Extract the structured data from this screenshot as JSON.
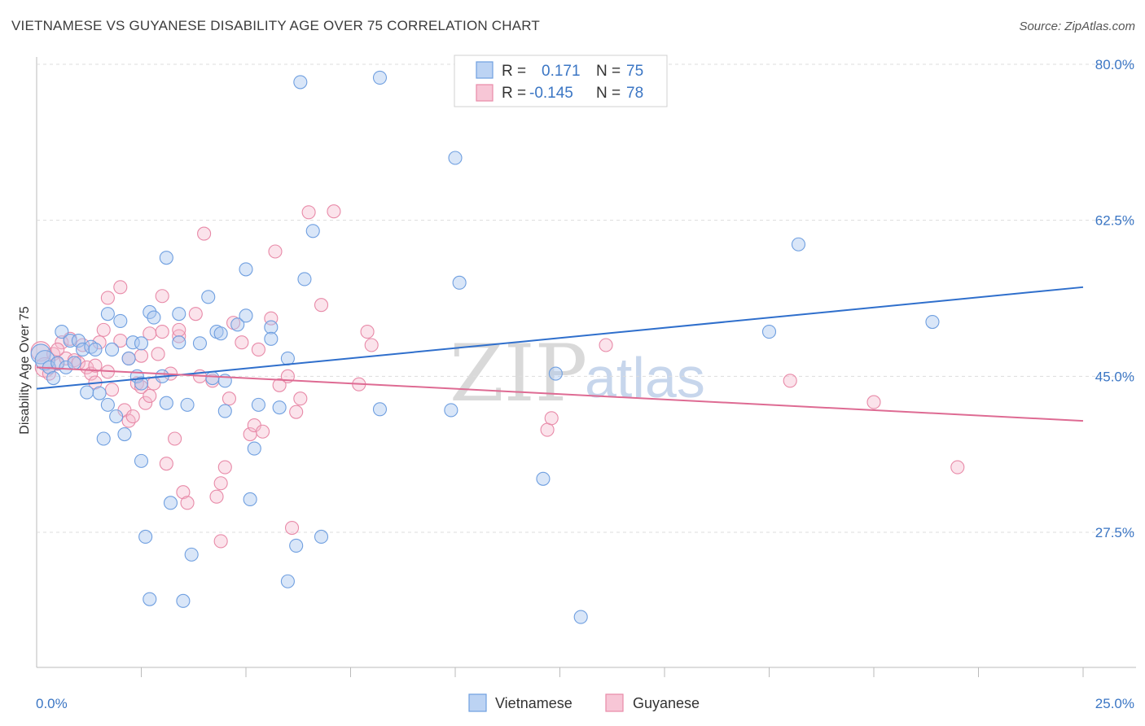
{
  "title": "VIETNAMESE VS GUYANESE DISABILITY AGE OVER 75 CORRELATION CHART",
  "source": "Source: ZipAtlas.com",
  "watermark": {
    "zip": "ZIP",
    "atlas": "atlas"
  },
  "chart_data": {
    "type": "scatter",
    "xlabel": "",
    "ylabel": "Disability Age Over 75",
    "xlim": [
      0,
      25
    ],
    "ylim": [
      12,
      81
    ],
    "x_tick_labels": {
      "left": "0.0%",
      "right": "25.0%"
    },
    "y_ticks": [
      {
        "value": 80.0,
        "label": "80.0%"
      },
      {
        "value": 62.5,
        "label": "62.5%"
      },
      {
        "value": 45.0,
        "label": "45.0%"
      },
      {
        "value": 27.5,
        "label": "27.5%"
      }
    ],
    "legend": {
      "r_label": "R =",
      "n_label": "N =",
      "entries": [
        {
          "name": "Vietnamese",
          "r": "0.171",
          "n": "75",
          "color": "#6f9fe0",
          "fill": "#bcd3f3",
          "line": "#2f6fcc"
        },
        {
          "name": "Guyanese",
          "r": "-0.145",
          "n": "78",
          "color": "#e88aa8",
          "fill": "#f7c6d6",
          "line": "#de6b93"
        }
      ]
    },
    "series": [
      {
        "name": "Vietnamese",
        "trend": {
          "x0": 0,
          "y0": 43.6,
          "x1": 25,
          "y1": 55.0
        },
        "points": [
          [
            0.1,
            47.5
          ],
          [
            0.2,
            46.8
          ],
          [
            0.3,
            46.0
          ],
          [
            0.4,
            44.8
          ],
          [
            0.5,
            46.5
          ],
          [
            0.6,
            50.0
          ],
          [
            0.7,
            46.0
          ],
          [
            0.8,
            49.0
          ],
          [
            0.9,
            46.5
          ],
          [
            1.0,
            49.0
          ],
          [
            1.1,
            48.0
          ],
          [
            1.2,
            43.2
          ],
          [
            1.3,
            48.3
          ],
          [
            1.4,
            48.0
          ],
          [
            1.5,
            43.1
          ],
          [
            1.6,
            38.0
          ],
          [
            1.7,
            41.8
          ],
          [
            1.7,
            52.0
          ],
          [
            1.8,
            48.0
          ],
          [
            1.9,
            40.5
          ],
          [
            2.0,
            51.2
          ],
          [
            2.1,
            38.5
          ],
          [
            2.2,
            47.0
          ],
          [
            2.3,
            48.8
          ],
          [
            2.4,
            45.0
          ],
          [
            2.5,
            35.5
          ],
          [
            2.5,
            44.2
          ],
          [
            2.5,
            48.7
          ],
          [
            2.6,
            27.0
          ],
          [
            2.7,
            20.0
          ],
          [
            2.7,
            52.2
          ],
          [
            2.8,
            51.6
          ],
          [
            3.0,
            45.0
          ],
          [
            3.1,
            58.3
          ],
          [
            3.1,
            42.0
          ],
          [
            3.2,
            30.8
          ],
          [
            3.4,
            52.0
          ],
          [
            3.4,
            48.8
          ],
          [
            3.6,
            41.8
          ],
          [
            3.7,
            25.0
          ],
          [
            3.5,
            19.8
          ],
          [
            3.9,
            48.7
          ],
          [
            4.1,
            53.9
          ],
          [
            4.2,
            44.8
          ],
          [
            4.3,
            50.0
          ],
          [
            4.4,
            49.8
          ],
          [
            4.5,
            44.5
          ],
          [
            4.5,
            41.1
          ],
          [
            4.8,
            50.8
          ],
          [
            5.0,
            57.0
          ],
          [
            5.0,
            51.8
          ],
          [
            5.1,
            31.2
          ],
          [
            5.2,
            36.9
          ],
          [
            5.3,
            41.8
          ],
          [
            5.6,
            50.5
          ],
          [
            5.6,
            49.2
          ],
          [
            5.8,
            41.5
          ],
          [
            6.0,
            47.0
          ],
          [
            6.0,
            22.0
          ],
          [
            6.2,
            26.0
          ],
          [
            6.3,
            78.0
          ],
          [
            6.4,
            55.9
          ],
          [
            6.6,
            61.3
          ],
          [
            6.8,
            27.0
          ],
          [
            8.2,
            41.3
          ],
          [
            8.2,
            78.5
          ],
          [
            9.9,
            41.2
          ],
          [
            10.0,
            69.5
          ],
          [
            10.1,
            55.5
          ],
          [
            12.1,
            33.5
          ],
          [
            12.4,
            45.3
          ],
          [
            18.2,
            59.8
          ],
          [
            17.5,
            50.0
          ],
          [
            21.4,
            51.1
          ],
          [
            13.0,
            18.0
          ]
        ]
      },
      {
        "name": "Guyanese",
        "trend": {
          "x0": 0,
          "y0": 46.0,
          "x1": 25,
          "y1": 40.0
        },
        "points": [
          [
            0.1,
            47.8
          ],
          [
            0.2,
            46.0
          ],
          [
            0.3,
            45.3
          ],
          [
            0.4,
            47.5
          ],
          [
            0.5,
            46.4
          ],
          [
            0.6,
            48.8
          ],
          [
            0.7,
            47.0
          ],
          [
            0.8,
            49.2
          ],
          [
            0.9,
            46.8
          ],
          [
            1.0,
            46.5
          ],
          [
            1.1,
            48.5
          ],
          [
            1.2,
            46.0
          ],
          [
            1.3,
            45.3
          ],
          [
            1.4,
            44.3
          ],
          [
            1.5,
            48.8
          ],
          [
            1.6,
            50.2
          ],
          [
            1.7,
            45.5
          ],
          [
            1.7,
            53.8
          ],
          [
            1.8,
            43.5
          ],
          [
            2.0,
            55.0
          ],
          [
            2.1,
            41.2
          ],
          [
            2.2,
            47.0
          ],
          [
            2.2,
            40.0
          ],
          [
            2.3,
            40.5
          ],
          [
            2.4,
            44.2
          ],
          [
            2.5,
            47.3
          ],
          [
            2.5,
            43.8
          ],
          [
            2.6,
            42.0
          ],
          [
            2.7,
            49.8
          ],
          [
            2.7,
            42.8
          ],
          [
            2.8,
            44.2
          ],
          [
            2.9,
            47.5
          ],
          [
            3.0,
            54.0
          ],
          [
            3.0,
            50.0
          ],
          [
            3.1,
            35.2
          ],
          [
            3.2,
            45.3
          ],
          [
            3.3,
            38.0
          ],
          [
            3.4,
            49.5
          ],
          [
            3.5,
            32.0
          ],
          [
            3.6,
            30.8
          ],
          [
            3.8,
            52.0
          ],
          [
            3.9,
            45.0
          ],
          [
            4.0,
            61.0
          ],
          [
            4.2,
            44.5
          ],
          [
            4.3,
            31.5
          ],
          [
            4.4,
            33.0
          ],
          [
            4.4,
            26.5
          ],
          [
            4.5,
            34.8
          ],
          [
            4.6,
            42.5
          ],
          [
            4.7,
            51.0
          ],
          [
            4.9,
            48.8
          ],
          [
            5.1,
            38.5
          ],
          [
            5.2,
            39.5
          ],
          [
            5.3,
            48.0
          ],
          [
            5.4,
            38.8
          ],
          [
            5.6,
            51.5
          ],
          [
            5.7,
            59.0
          ],
          [
            5.8,
            44.0
          ],
          [
            6.0,
            45.0
          ],
          [
            6.1,
            28.0
          ],
          [
            6.2,
            41.0
          ],
          [
            6.3,
            42.5
          ],
          [
            6.5,
            63.4
          ],
          [
            6.8,
            53.0
          ],
          [
            7.1,
            63.5
          ],
          [
            7.7,
            44.1
          ],
          [
            7.9,
            50.0
          ],
          [
            8.0,
            48.5
          ],
          [
            12.2,
            39.0
          ],
          [
            12.3,
            40.3
          ],
          [
            13.6,
            48.5
          ],
          [
            18.0,
            44.5
          ],
          [
            20.0,
            42.1
          ],
          [
            22.0,
            34.8
          ],
          [
            0.5,
            48.0
          ],
          [
            1.4,
            46.2
          ],
          [
            2.0,
            49.0
          ],
          [
            3.4,
            50.2
          ]
        ]
      }
    ]
  }
}
